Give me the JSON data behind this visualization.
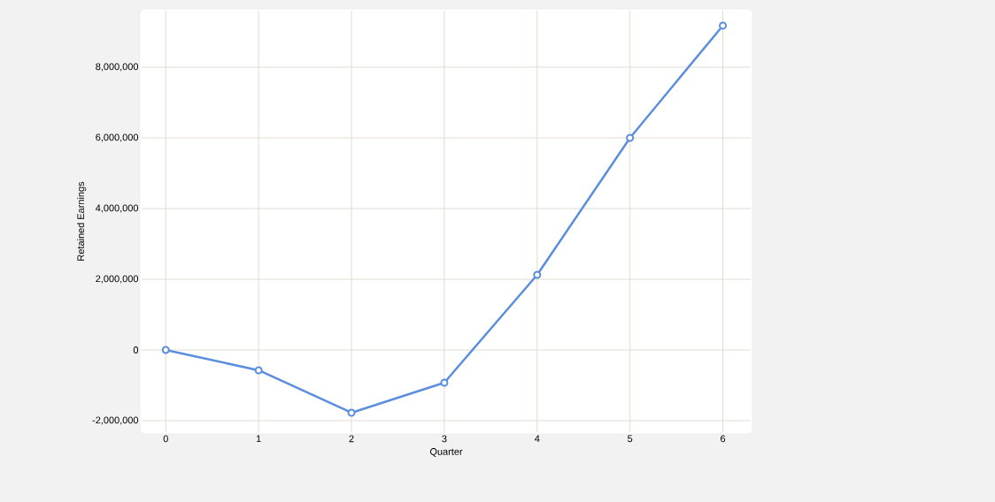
{
  "chart_data": {
    "type": "line",
    "xlabel": "Quarter",
    "ylabel": "Retained Earnings",
    "x": [
      0,
      1,
      2,
      3,
      4,
      5,
      6
    ],
    "series": [
      {
        "color": "#5b8ede",
        "values": [
          0,
          -575000,
          -1775000,
          -925000,
          2125000,
          6000000,
          9175000
        ]
      }
    ],
    "xlim": [
      -0.26,
      6.3
    ],
    "ylim": [
      -2325000,
      9600000
    ],
    "xticks": [
      0,
      1,
      2,
      3,
      4,
      5,
      6
    ],
    "yticks": [
      {
        "value": -2000000,
        "label": "-2,000,000"
      },
      {
        "value": 0,
        "label": "0"
      },
      {
        "value": 2000000,
        "label": "2,000,000"
      },
      {
        "value": 4000000,
        "label": "4,000,000"
      },
      {
        "value": 6000000,
        "label": "6,000,000"
      },
      {
        "value": 8000000,
        "label": "8,000,000"
      }
    ],
    "grid": true,
    "marker": "circle",
    "line_style": "solid"
  }
}
